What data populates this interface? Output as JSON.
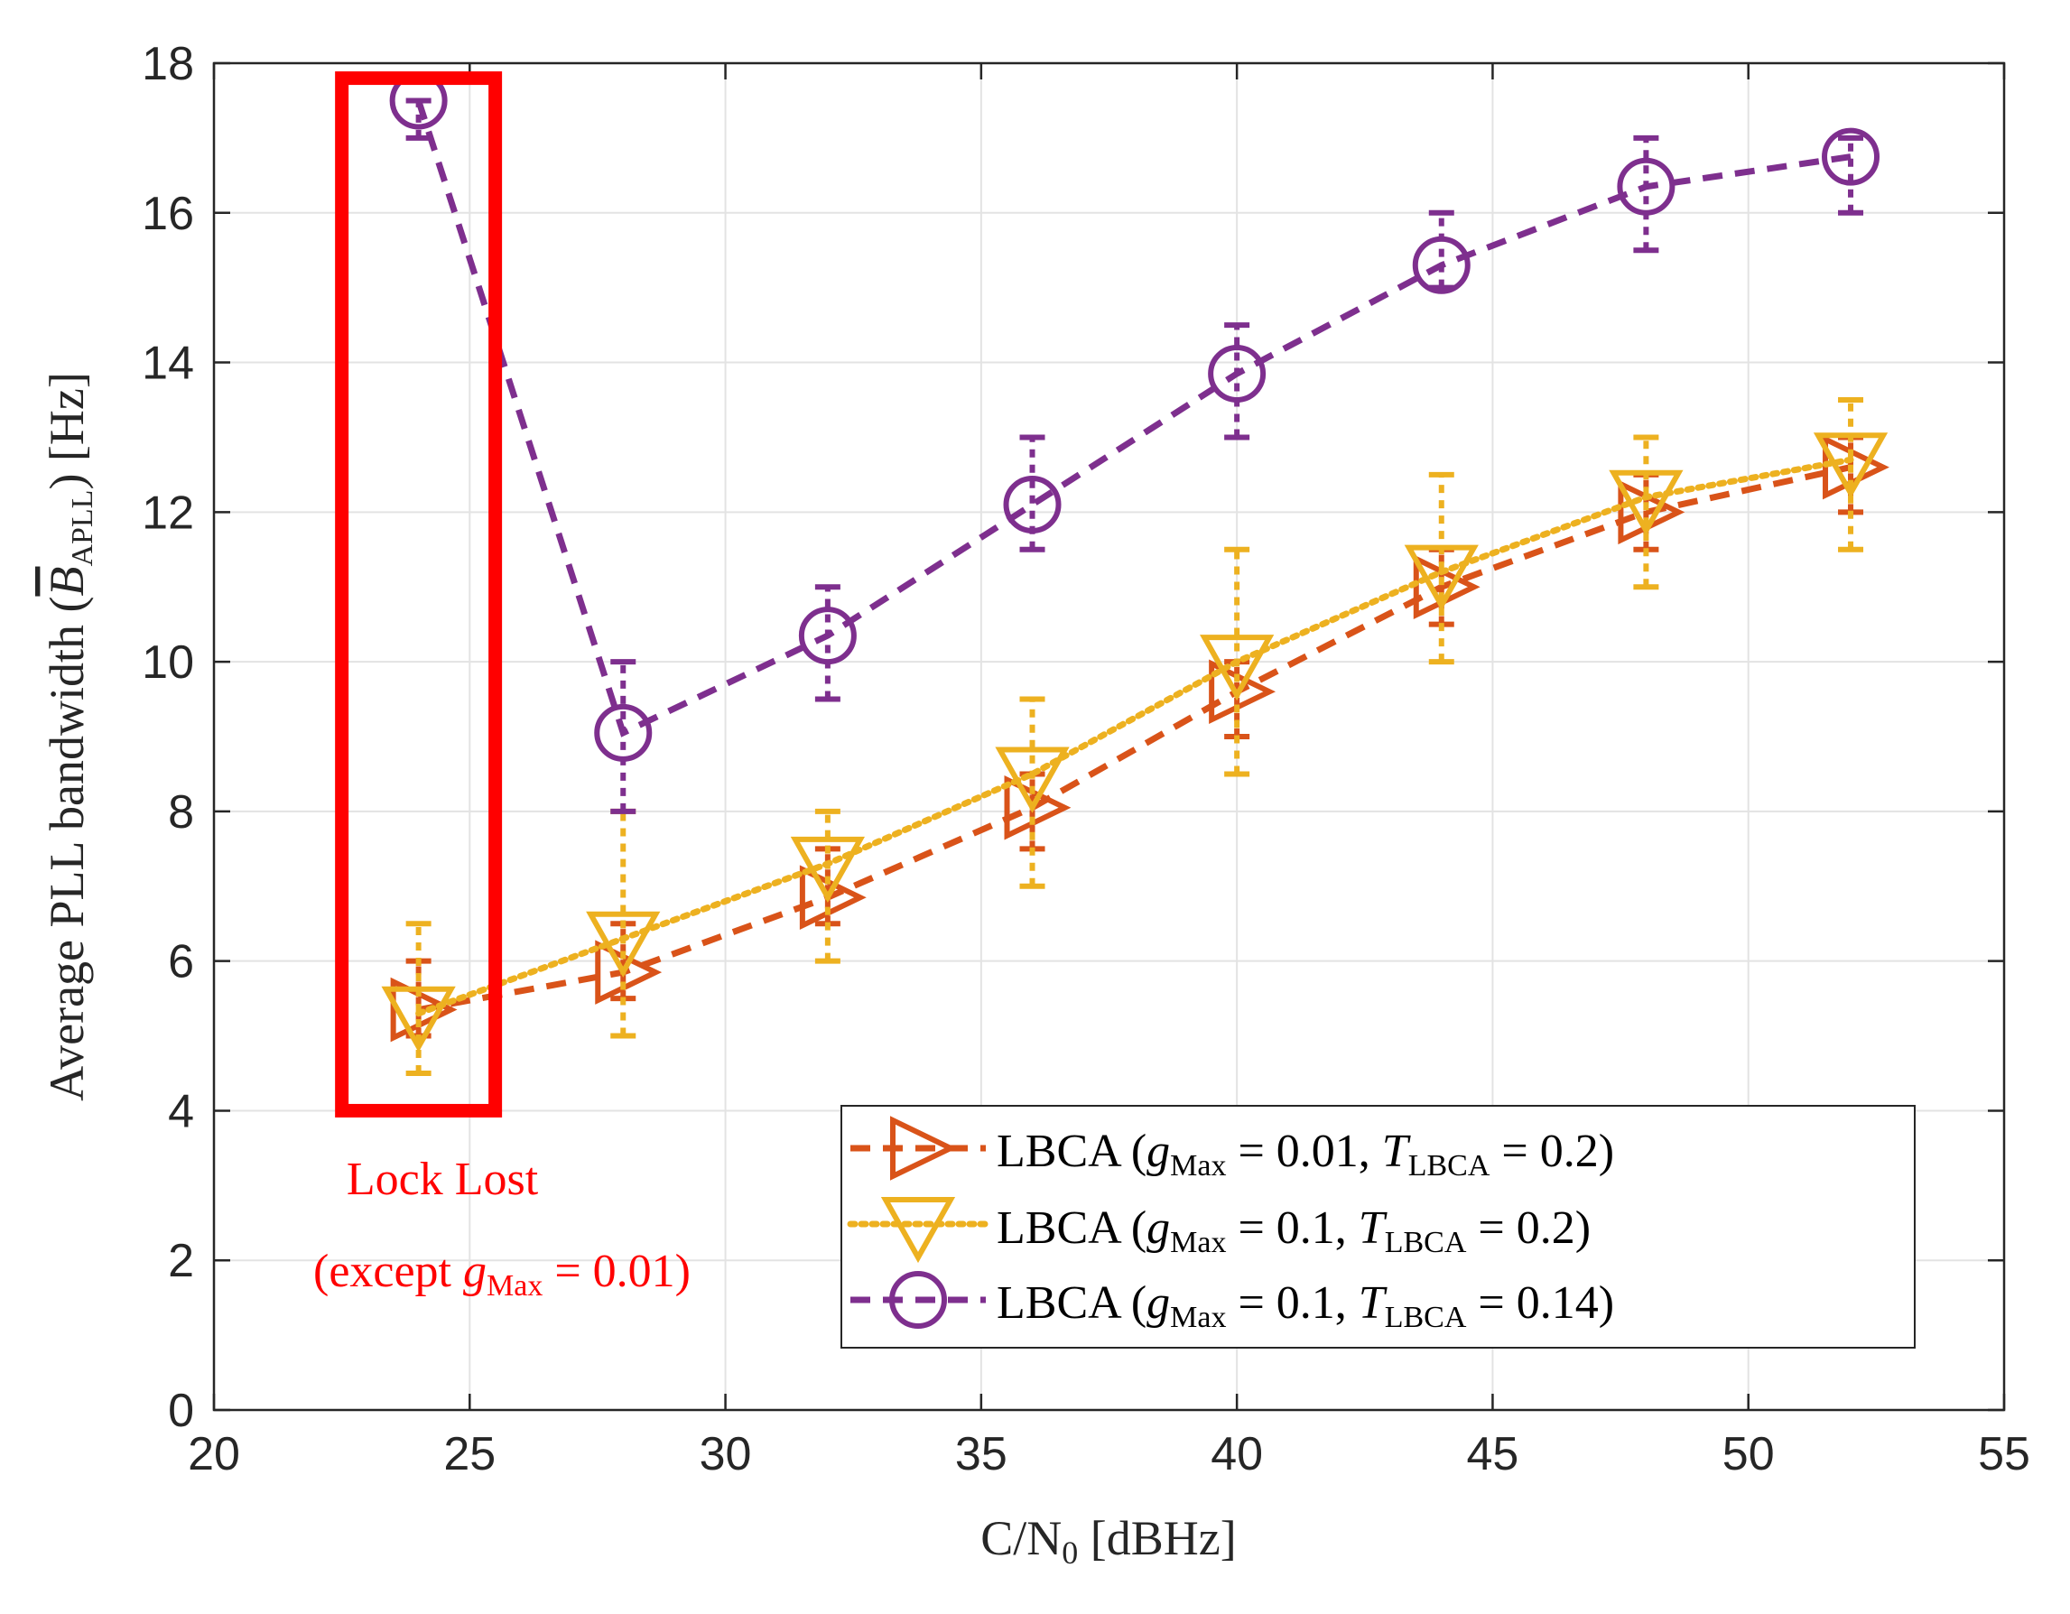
{
  "chart_data": {
    "type": "line",
    "title": "",
    "xlabel": "C/N",
    "xlabel_sub": "0",
    "xlabel_unit": " [dBHz]",
    "ylabel_pre": "Average PLL bandwidth (",
    "ylabel_sym": "B",
    "ylabel_sub": "APLL",
    "ylabel_post": ") [Hz]",
    "xlim": [
      20,
      55
    ],
    "ylim": [
      0,
      18
    ],
    "xticks": [
      20,
      25,
      30,
      35,
      40,
      45,
      50,
      55
    ],
    "yticks": [
      0,
      2,
      4,
      6,
      8,
      10,
      12,
      14,
      16,
      18
    ],
    "grid": true,
    "legend_position": "bottom-right",
    "x": [
      24,
      28,
      32,
      36,
      40,
      44,
      48,
      52
    ],
    "series": [
      {
        "name": "LBCA (gMax = 0.01, TLBCA = 0.2)",
        "label_pre": "LBCA (",
        "g_sym": "g",
        "g_sub": "Max",
        "g_val": " = 0.01, ",
        "t_sym": "T",
        "t_sub": "LBCA",
        "t_val": " = 0.2)",
        "color": "#d95319",
        "marker": "triangle-right",
        "linestyle": "dashed",
        "values": [
          5.35,
          5.85,
          6.85,
          8.05,
          9.6,
          11.0,
          12.0,
          12.6
        ],
        "err_low": [
          5.0,
          5.5,
          6.5,
          7.5,
          9.0,
          10.5,
          11.5,
          12.0
        ],
        "err_high": [
          6.0,
          6.5,
          7.5,
          8.5,
          10.0,
          11.5,
          12.5,
          13.0
        ]
      },
      {
        "name": "LBCA (gMax = 0.1, TLBCA = 0.2)",
        "label_pre": "LBCA (",
        "g_sym": "g",
        "g_sub": "Max",
        "g_val": " = 0.1, ",
        "t_sym": "T",
        "t_sub": "LBCA",
        "t_val": " = 0.2)",
        "color": "#edb120",
        "marker": "triangle-down",
        "linestyle": "dotted",
        "values": [
          5.3,
          6.3,
          7.3,
          8.5,
          10.0,
          11.2,
          12.2,
          12.7
        ],
        "err_low": [
          4.5,
          5.0,
          6.0,
          7.0,
          8.5,
          10.0,
          11.0,
          11.5
        ],
        "err_high": [
          6.5,
          8.0,
          8.0,
          9.5,
          11.5,
          12.5,
          13.0,
          13.5
        ]
      },
      {
        "name": "LBCA (gMax = 0.1, TLBCA = 0.14)",
        "label_pre": "LBCA (",
        "g_sym": "g",
        "g_sub": "Max",
        "g_val": " = 0.1, ",
        "t_sym": "T",
        "t_sub": "LBCA",
        "t_val": " = 0.14)",
        "color": "#7e2f8e",
        "marker": "circle",
        "linestyle": "dashed",
        "values": [
          17.5,
          9.05,
          10.35,
          12.1,
          13.85,
          15.3,
          16.35,
          16.75
        ],
        "err_low": [
          17.0,
          8.0,
          9.5,
          11.5,
          13.0,
          15.0,
          15.5,
          16.0
        ],
        "err_high": [
          17.5,
          10.0,
          11.0,
          13.0,
          14.5,
          16.0,
          17.0,
          17.0
        ]
      }
    ],
    "annotation": {
      "line1": "Lock Lost",
      "line2_pre": "(except ",
      "line2_sym": "g",
      "line2_sub": "Max",
      "line2_post": " = 0.01)",
      "color": "#ff0000",
      "box_x": [
        22.5,
        25.5
      ],
      "box_y": [
        4.0,
        17.8
      ]
    }
  }
}
